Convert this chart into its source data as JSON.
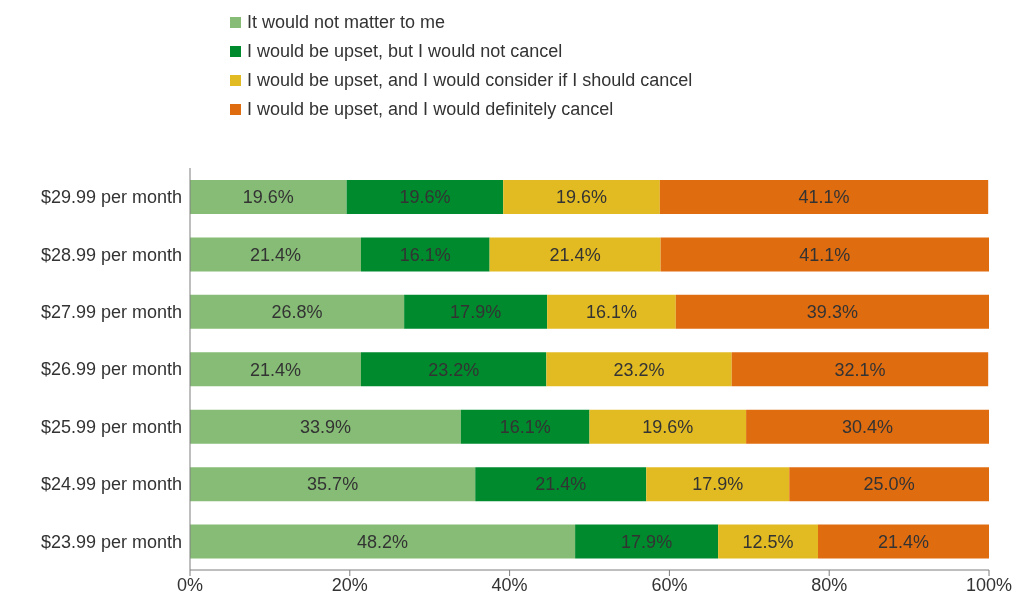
{
  "chart_data": {
    "type": "bar",
    "orientation": "horizontal",
    "stacked": true,
    "legend": "top",
    "grid": false,
    "categories": [
      "$29.99 per month",
      "$28.99 per month",
      "$27.99 per month",
      "$26.99 per month",
      "$25.99 per month",
      "$24.99 per month",
      "$23.99 per month"
    ],
    "xlim": [
      0,
      100
    ],
    "xticks": [
      {
        "value": 0,
        "label": "0%"
      },
      {
        "value": 20,
        "label": "20%"
      },
      {
        "value": 40,
        "label": "40%"
      },
      {
        "value": 60,
        "label": "60%"
      },
      {
        "value": 80,
        "label": "80%"
      },
      {
        "value": 100,
        "label": "100%"
      }
    ],
    "series": [
      {
        "name": "It would not matter to me",
        "color": "#86bc76",
        "values": [
          19.6,
          21.4,
          26.8,
          21.4,
          33.9,
          35.7,
          48.2
        ],
        "value_labels": [
          "19.6%",
          "21.4%",
          "26.8%",
          "21.4%",
          "33.9%",
          "35.7%",
          "48.2%"
        ]
      },
      {
        "name": "I would be upset, but I would not cancel",
        "color": "#008a2e",
        "values": [
          19.6,
          16.1,
          17.9,
          23.2,
          16.1,
          21.4,
          17.9
        ],
        "value_labels": [
          "19.6%",
          "16.1%",
          "17.9%",
          "23.2%",
          "16.1%",
          "21.4%",
          "17.9%"
        ]
      },
      {
        "name": "I would be upset, and I would consider if I should cancel",
        "color": "#e2bb22",
        "values": [
          19.6,
          21.4,
          16.1,
          23.2,
          19.6,
          17.9,
          12.5
        ],
        "value_labels": [
          "19.6%",
          "21.4%",
          "16.1%",
          "23.2%",
          "19.6%",
          "17.9%",
          "12.5%"
        ]
      },
      {
        "name": "I would be upset, and I would definitely cancel",
        "color": "#e06c10",
        "values": [
          41.1,
          41.1,
          39.3,
          32.1,
          30.4,
          25.0,
          21.4
        ],
        "value_labels": [
          "41.1%",
          "41.1%",
          "39.3%",
          "32.1%",
          "30.4%",
          "25.0%",
          "21.4%"
        ]
      }
    ]
  }
}
